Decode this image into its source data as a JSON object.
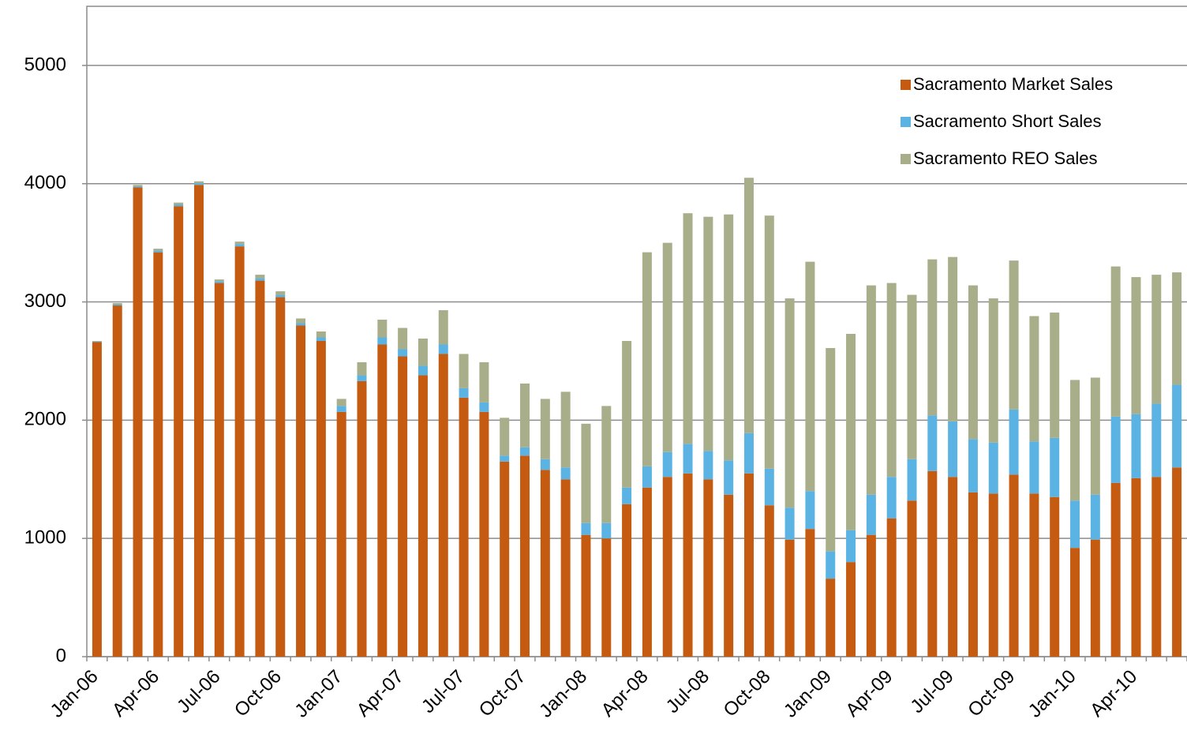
{
  "chart_data": {
    "type": "stacked_bar",
    "categories": [
      "Jan-06",
      null,
      null,
      "Apr-06",
      null,
      null,
      "Jul-06",
      null,
      null,
      "Oct-06",
      null,
      null,
      "Jan-07",
      null,
      null,
      "Apr-07",
      null,
      null,
      "Jul-07",
      null,
      null,
      "Oct-07",
      null,
      null,
      "Jan-08",
      null,
      null,
      "Apr-08",
      null,
      null,
      "Jul-08",
      null,
      null,
      "Oct-08",
      null,
      null,
      "Jan-09",
      null,
      null,
      "Apr-09",
      null,
      null,
      "Jul-09",
      null,
      null,
      "Oct-09",
      null,
      null,
      "Jan-10",
      null,
      null,
      "Apr-10",
      null,
      null
    ],
    "series": [
      {
        "name": "Sacramento Market Sales",
        "color": "#c55a11",
        "values": [
          2660,
          2970,
          3970,
          3420,
          3810,
          3990,
          3160,
          3470,
          3180,
          3040,
          2800,
          2670,
          2070,
          2330,
          2640,
          2540,
          2380,
          2560,
          2190,
          2070,
          1650,
          1700,
          1580,
          1500,
          1030,
          1000,
          1290,
          1430,
          1520,
          1550,
          1500,
          1370,
          1550,
          1280,
          990,
          1080,
          660,
          800,
          1030,
          1170,
          1320,
          1570,
          1520,
          1390,
          1380,
          1540,
          1380,
          1350,
          920,
          990,
          1470,
          1510,
          1520,
          1600
        ]
      },
      {
        "name": "Sacramento Short Sales",
        "color": "#5bb3e3",
        "values": [
          5,
          10,
          10,
          15,
          15,
          15,
          15,
          20,
          20,
          20,
          20,
          30,
          50,
          50,
          60,
          60,
          80,
          80,
          80,
          80,
          50,
          70,
          90,
          100,
          100,
          130,
          140,
          180,
          210,
          250,
          240,
          290,
          340,
          310,
          270,
          320,
          230,
          270,
          340,
          350,
          350,
          470,
          470,
          450,
          430,
          550,
          440,
          500,
          400,
          380,
          560,
          540,
          620,
          700
        ]
      },
      {
        "name": "Sacramento REO Sales",
        "color": "#a9ae8a",
        "values": [
          5,
          10,
          10,
          15,
          15,
          15,
          15,
          20,
          30,
          30,
          40,
          50,
          60,
          110,
          150,
          180,
          230,
          290,
          290,
          340,
          320,
          540,
          510,
          640,
          840,
          990,
          1240,
          1810,
          1770,
          1950,
          1980,
          2080,
          2160,
          2140,
          1770,
          1940,
          1720,
          1660,
          1770,
          1640,
          1390,
          1320,
          1390,
          1300,
          1220,
          1260,
          1060,
          1060,
          1020,
          990,
          1270,
          1160,
          1090,
          950
        ]
      }
    ],
    "ylim": [
      0,
      5500
    ],
    "yticks": [
      0,
      1000,
      2000,
      3000,
      4000,
      5000
    ],
    "grid": true,
    "legend": "top-right"
  }
}
